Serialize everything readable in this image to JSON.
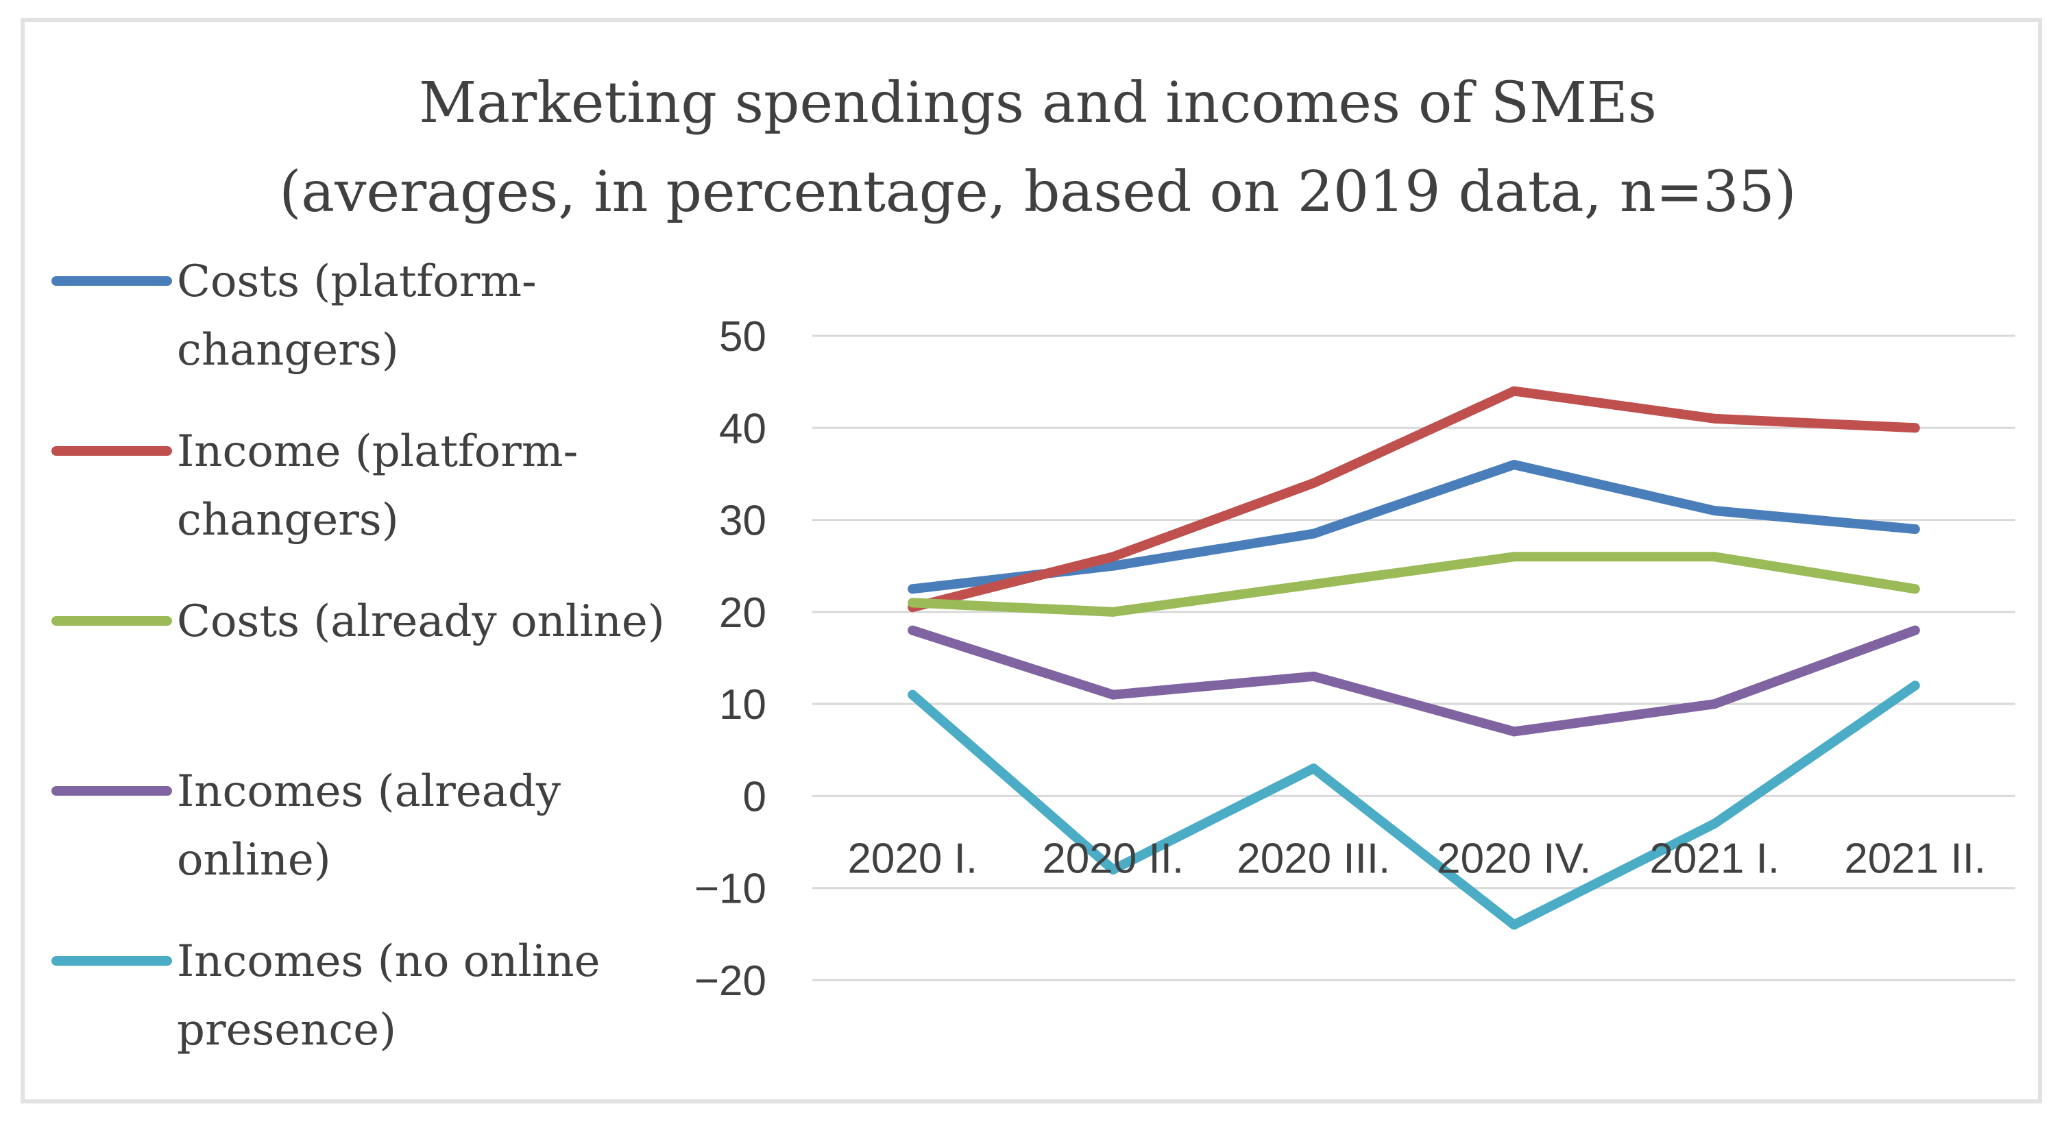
{
  "chart_data": {
    "type": "line",
    "title": "Marketing spendings and incomes of SMEs",
    "subtitle": "(averages, in percentage, based on 2019 data,  n=35)",
    "xlabel": "",
    "ylabel": "",
    "categories": [
      "2020 I.",
      "2020 II.",
      "2020 III.",
      "2020 IV.",
      "2021 I.",
      "2021 II."
    ],
    "ylim": [
      -20,
      50
    ],
    "yticks": [
      50,
      40,
      30,
      20,
      10,
      0,
      -10,
      -20
    ],
    "ytick_labels": [
      "50",
      "40",
      "30",
      "20",
      "10",
      "0",
      "−10",
      "−20"
    ],
    "grid": true,
    "legend_position": "left",
    "series": [
      {
        "name": "Costs (platform-changers)",
        "legend_lines": [
          "Costs (platform-",
          "changers)"
        ],
        "color": "#4a7ebb",
        "values": [
          22.5,
          25,
          28.5,
          36,
          31,
          29
        ]
      },
      {
        "name": "Income (platform-changers)",
        "legend_lines": [
          "Income (platform-",
          "changers)"
        ],
        "color": "#c0504d",
        "values": [
          20.5,
          26,
          34,
          44,
          41,
          40
        ]
      },
      {
        "name": "Costs (already online)",
        "legend_lines": [
          "Costs (already online)"
        ],
        "color": "#9bbb59",
        "values": [
          21,
          20,
          23,
          26,
          26,
          22.5
        ]
      },
      {
        "name": "Incomes (already online)",
        "legend_lines": [
          "Incomes (already",
          "online)"
        ],
        "color": "#8064a2",
        "values": [
          18,
          11,
          13,
          7,
          10,
          18
        ]
      },
      {
        "name": "Incomes (no online presence)",
        "legend_lines": [
          "Incomes (no online",
          "presence)"
        ],
        "color": "#4bacc6",
        "values": [
          11,
          -8,
          3,
          -14,
          -3,
          12
        ]
      }
    ]
  }
}
